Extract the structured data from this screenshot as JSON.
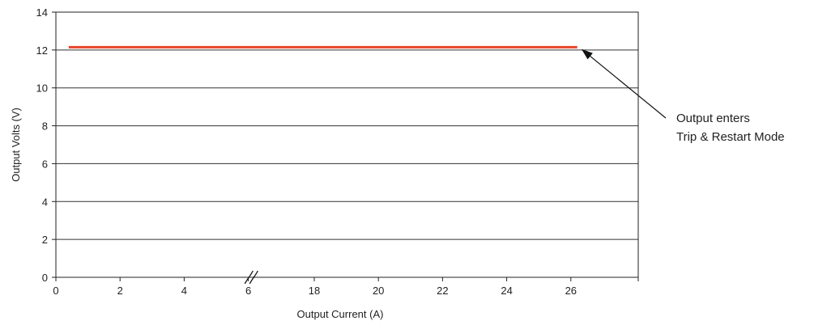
{
  "chart_data": {
    "type": "line",
    "xlabel": "Output Current (A)",
    "ylabel": "Output Volts (V)",
    "x_tick_labels": [
      "0",
      "2",
      "4",
      "6",
      "18",
      "20",
      "22",
      "24",
      "26"
    ],
    "y_ticks": [
      0,
      2,
      4,
      6,
      8,
      10,
      12,
      14
    ],
    "ylim": [
      0,
      14
    ],
    "axis_break_after": "6",
    "grid": "horizontal",
    "series": [
      {
        "color": "#e8442a",
        "points": [
          {
            "x": "0.4",
            "y": 12.15
          },
          {
            "x": "26.2",
            "y": 12.15
          }
        ]
      }
    ],
    "annotation": {
      "line1": "Output enters",
      "line2": "Trip & Restart Mode",
      "target": {
        "x": "26.2",
        "y": 12.15
      }
    }
  }
}
